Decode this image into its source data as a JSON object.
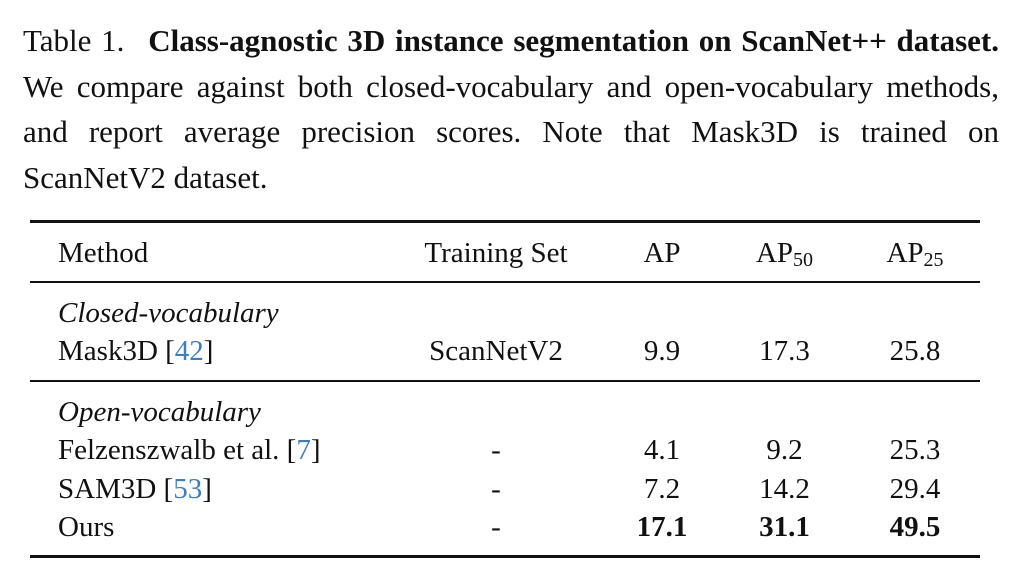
{
  "caption": {
    "label": "Table 1.",
    "title": "Class-agnostic 3D instance segmentation on ScanNet++ dataset.",
    "body": "We compare against both closed-vocabulary and open-vocabulary methods, and report average precision scores. Note that Mask3D is trained on ScanNetV2 dataset."
  },
  "table": {
    "headers": {
      "method": "Method",
      "training_set": "Training Set",
      "ap": "AP",
      "ap50_base": "AP",
      "ap50_sub": "50",
      "ap25_base": "AP",
      "ap25_sub": "25"
    },
    "groups": [
      {
        "label": "Closed-vocabulary",
        "rows": [
          {
            "method": "Mask3D [",
            "cite": "42",
            "close": "]",
            "training_set": "ScanNetV2",
            "ap": "9.9",
            "ap50": "17.3",
            "ap25": "25.8"
          }
        ]
      },
      {
        "label": "Open-vocabulary",
        "rows": [
          {
            "method": "Felzenszwalb et al. [",
            "cite": "7",
            "close": "]",
            "training_set": "-",
            "ap": "4.1",
            "ap50": "9.2",
            "ap25": "25.3"
          },
          {
            "method": "SAM3D [",
            "cite": "53",
            "close": "]",
            "training_set": "-",
            "ap": "7.2",
            "ap50": "14.2",
            "ap25": "29.4"
          },
          {
            "method": "Ours",
            "training_set": "-",
            "ap": "17.1",
            "ap50": "31.1",
            "ap25": "49.5"
          }
        ]
      }
    ]
  }
}
